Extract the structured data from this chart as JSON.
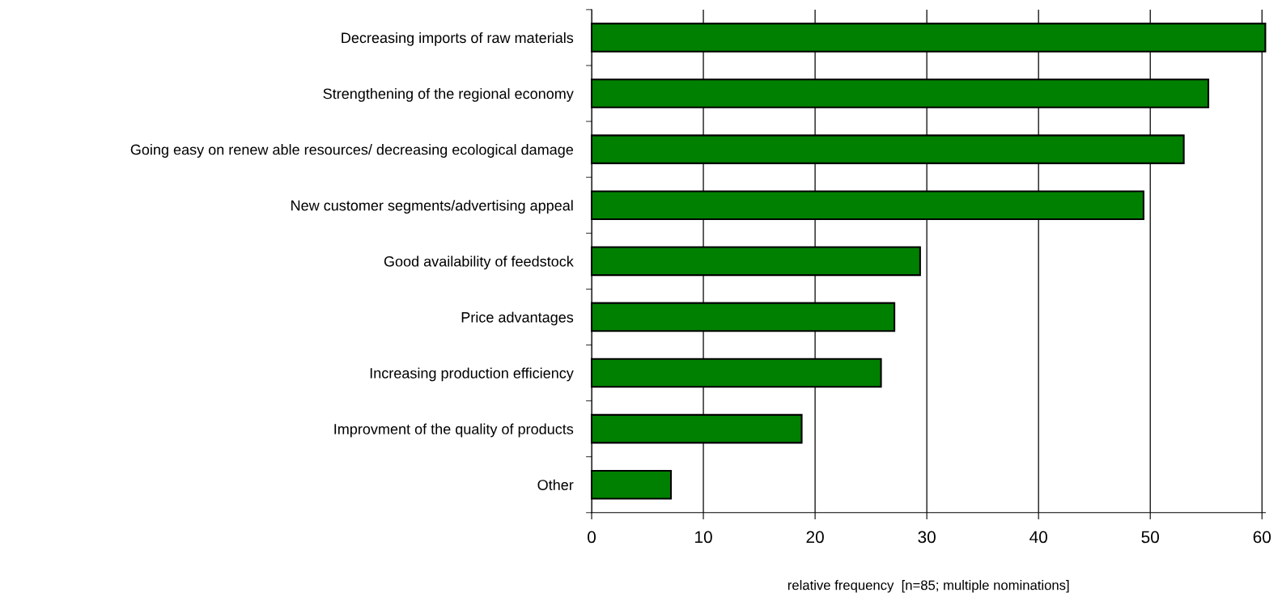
{
  "chart_data": {
    "type": "bar",
    "orientation": "horizontal",
    "xlabel": "relative frequency  [n=85; multiple nominations]",
    "categories": [
      "Decreasing imports of raw materials",
      "Strengthening of the regional economy",
      "Going easy on renew able resources/ decreasing ecological damage",
      "New customer segments/advertising appeal",
      "Good availability of feedstock",
      "Price advantages",
      "Increasing production efficiency",
      "Improvment of the quality of products",
      "Other"
    ],
    "values": [
      60.3,
      55.2,
      53.0,
      49.4,
      29.4,
      27.1,
      25.9,
      18.8,
      7.1
    ],
    "color": "#008000",
    "xlim": [
      0,
      60.3
    ],
    "xticks": [
      0,
      10,
      20,
      30,
      40,
      50,
      60
    ],
    "grid": "x",
    "legend": false
  }
}
